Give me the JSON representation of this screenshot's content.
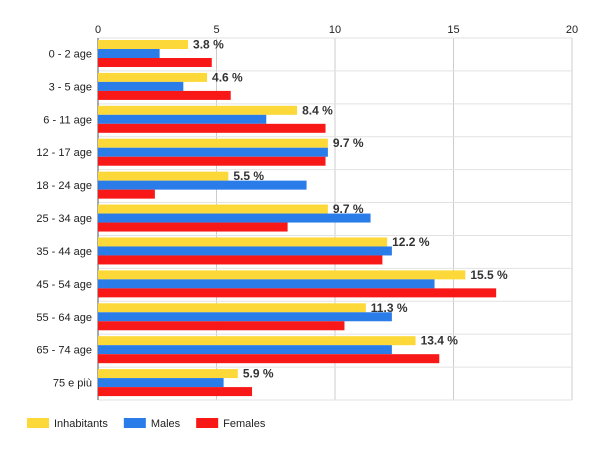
{
  "chart_data": {
    "type": "bar",
    "orientation": "horizontal",
    "categories": [
      "0 - 2 age",
      "3 - 5 age",
      "6 - 11 age",
      "12 - 17 age",
      "18 - 24 age",
      "25 - 34 age",
      "35 - 44 age",
      "45 - 54 age",
      "55 - 64 age",
      "65 - 74 age",
      "75 e più"
    ],
    "series": [
      {
        "name": "Inhabitants",
        "color": "#fcd939",
        "values": [
          3.8,
          4.6,
          8.4,
          9.7,
          5.5,
          9.7,
          12.2,
          15.5,
          11.3,
          13.4,
          5.9
        ]
      },
      {
        "name": "Males",
        "color": "#2a7ce8",
        "values": [
          2.6,
          3.6,
          7.1,
          9.7,
          8.8,
          11.5,
          12.4,
          14.2,
          12.4,
          12.4,
          5.3
        ]
      },
      {
        "name": "Females",
        "color": "#f81818",
        "values": [
          4.8,
          5.6,
          9.6,
          9.6,
          2.4,
          8.0,
          12.0,
          16.8,
          10.4,
          14.4,
          6.5
        ]
      }
    ],
    "data_labels": [
      "3.8 %",
      "4.6 %",
      "8.4 %",
      "9.7 %",
      "5.5 %",
      "9.7 %",
      "12.2 %",
      "15.5 %",
      "11.3 %",
      "13.4 %",
      "5.9 %"
    ],
    "x_ticks": [
      "0",
      "5",
      "10",
      "15",
      "20"
    ],
    "xlim": [
      0,
      20
    ],
    "axis_position": "top",
    "grid": true,
    "legend_position": "bottom-left",
    "title": "",
    "xlabel": "",
    "ylabel": ""
  }
}
